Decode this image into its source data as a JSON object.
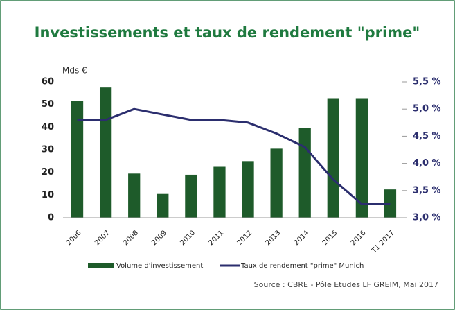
{
  "chart_data": {
    "type": "bar_line",
    "title": "Investissements et taux de rendement \"prime\"",
    "ylabel": "Mds €",
    "categories": [
      "2006",
      "2007",
      "2008",
      "2009",
      "2010",
      "2011",
      "2012",
      "2013",
      "2014",
      "2015",
      "2016",
      "T1 2017"
    ],
    "series": [
      {
        "name": "Volume d'investissement",
        "type": "bar",
        "color": "#1e5b2a",
        "values": [
          51.5,
          57.5,
          19.5,
          10.5,
          19,
          22.5,
          25,
          30.5,
          39.5,
          52.5,
          52.5,
          12.5
        ]
      },
      {
        "name": "Taux de rendement \"prime\" Munich",
        "type": "line",
        "axis": "y2",
        "color": "#2b2e6e",
        "values": [
          4.8,
          4.8,
          5.0,
          4.9,
          4.8,
          4.8,
          4.75,
          4.55,
          4.3,
          3.7,
          3.25,
          3.25
        ]
      }
    ],
    "ylim": [
      0,
      60
    ],
    "yticks": [
      0,
      10,
      20,
      30,
      40,
      50,
      60
    ],
    "y2lim": [
      3.0,
      5.5
    ],
    "y2ticks": [
      {
        "value": 3.0,
        "label": "3,0 %"
      },
      {
        "value": 3.5,
        "label": "3,5 %"
      },
      {
        "value": 4.0,
        "label": "4,0 %"
      },
      {
        "value": 4.5,
        "label": "4,5 %"
      },
      {
        "value": 5.0,
        "label": "5,0 %"
      },
      {
        "value": 5.5,
        "label": "5,5 %"
      }
    ],
    "source": "Source : CBRE - Pôle Etudes LF GREIM, Mai 2017"
  }
}
